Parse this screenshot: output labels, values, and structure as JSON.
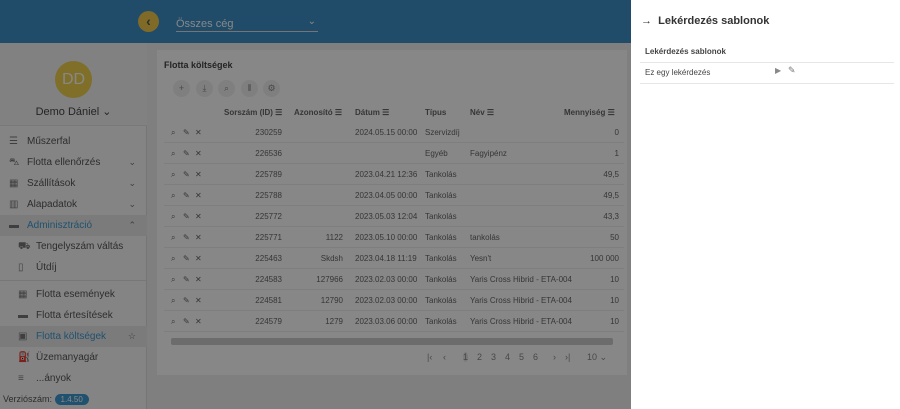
{
  "header": {
    "company_select": "Összes cég"
  },
  "user": {
    "initials": "DD",
    "name": "Demo Dániel"
  },
  "sidebar": {
    "items": [
      {
        "label": "Műszerfal",
        "icon": "dashboard-icon"
      },
      {
        "label": "Flotta ellenőrzés",
        "icon": "car-icon",
        "chevron": "down"
      },
      {
        "label": "Szállítások",
        "icon": "bus-icon",
        "chevron": "down"
      },
      {
        "label": "Alapadatok",
        "icon": "settings-list-icon",
        "chevron": "down"
      },
      {
        "label": "Adminisztráció",
        "icon": "monitor-icon",
        "chevron": "up",
        "active": true
      },
      {
        "label": "Tengelyszám váltás",
        "icon": "truck-icon",
        "sub": true
      },
      {
        "label": "Útdíj",
        "icon": "map-icon",
        "sub": true
      },
      {
        "label": "Flotta események",
        "icon": "calendar-icon",
        "sub": true
      },
      {
        "label": "Flotta értesítések",
        "icon": "calendar-alert-icon",
        "sub": true
      },
      {
        "label": "Flotta költségek",
        "icon": "money-icon",
        "sub": true,
        "active": true,
        "star": true
      },
      {
        "label": "Üzemanyagár",
        "icon": "fuel-icon",
        "sub": true
      },
      {
        "label": "...ányok",
        "icon": "list-icon",
        "sub": true
      }
    ],
    "version_label": "Verziószám:",
    "version": "1.4.50"
  },
  "main": {
    "title": "Flotta költségek",
    "columns": [
      "Sorszám (ID)",
      "Azonosító",
      "Dátum",
      "Típus",
      "Név",
      "Mennyiség"
    ],
    "rows": [
      [
        "230259",
        "",
        "2024.05.15 00:00",
        "Szervizdíj",
        "",
        "0"
      ],
      [
        "226536",
        "",
        "",
        "Egyéb",
        "Fagyipénz",
        "1"
      ],
      [
        "225789",
        "",
        "2023.04.21 12:36",
        "Tankolás",
        "",
        "49,5"
      ],
      [
        "225788",
        "",
        "2023.04.05 00:00",
        "Tankolás",
        "",
        "49,5"
      ],
      [
        "225772",
        "",
        "2023.05.03 12:04",
        "Tankolás",
        "",
        "43,3"
      ],
      [
        "225771",
        "1122",
        "2023.05.10 00:00",
        "Tankolás",
        "tankolás",
        "50"
      ],
      [
        "225463",
        "Skdsh",
        "2023.04.18 11:19",
        "Tankolás",
        "Yesn't",
        "100 000"
      ],
      [
        "224583",
        "127966",
        "2023.02.03 00:00",
        "Tankolás",
        "Yaris Cross Hibrid - ETA-004",
        "10"
      ],
      [
        "224581",
        "12790",
        "2023.02.03 00:00",
        "Tankolás",
        "Yaris Cross Hibrid - ETA-004",
        "10"
      ],
      [
        "224579",
        "1279",
        "2023.03.06 00:00",
        "Tankolás",
        "Yaris Cross Hibrid - ETA-004",
        "10"
      ]
    ],
    "pages": [
      "1",
      "2",
      "3",
      "4",
      "5",
      "6"
    ],
    "current_page": "1",
    "page_size": "10"
  },
  "panel": {
    "title": "Lekérdezés sablonok",
    "section": "Lekérdezés sablonok",
    "items": [
      {
        "label": "Ez egy lekérdezés"
      }
    ]
  }
}
